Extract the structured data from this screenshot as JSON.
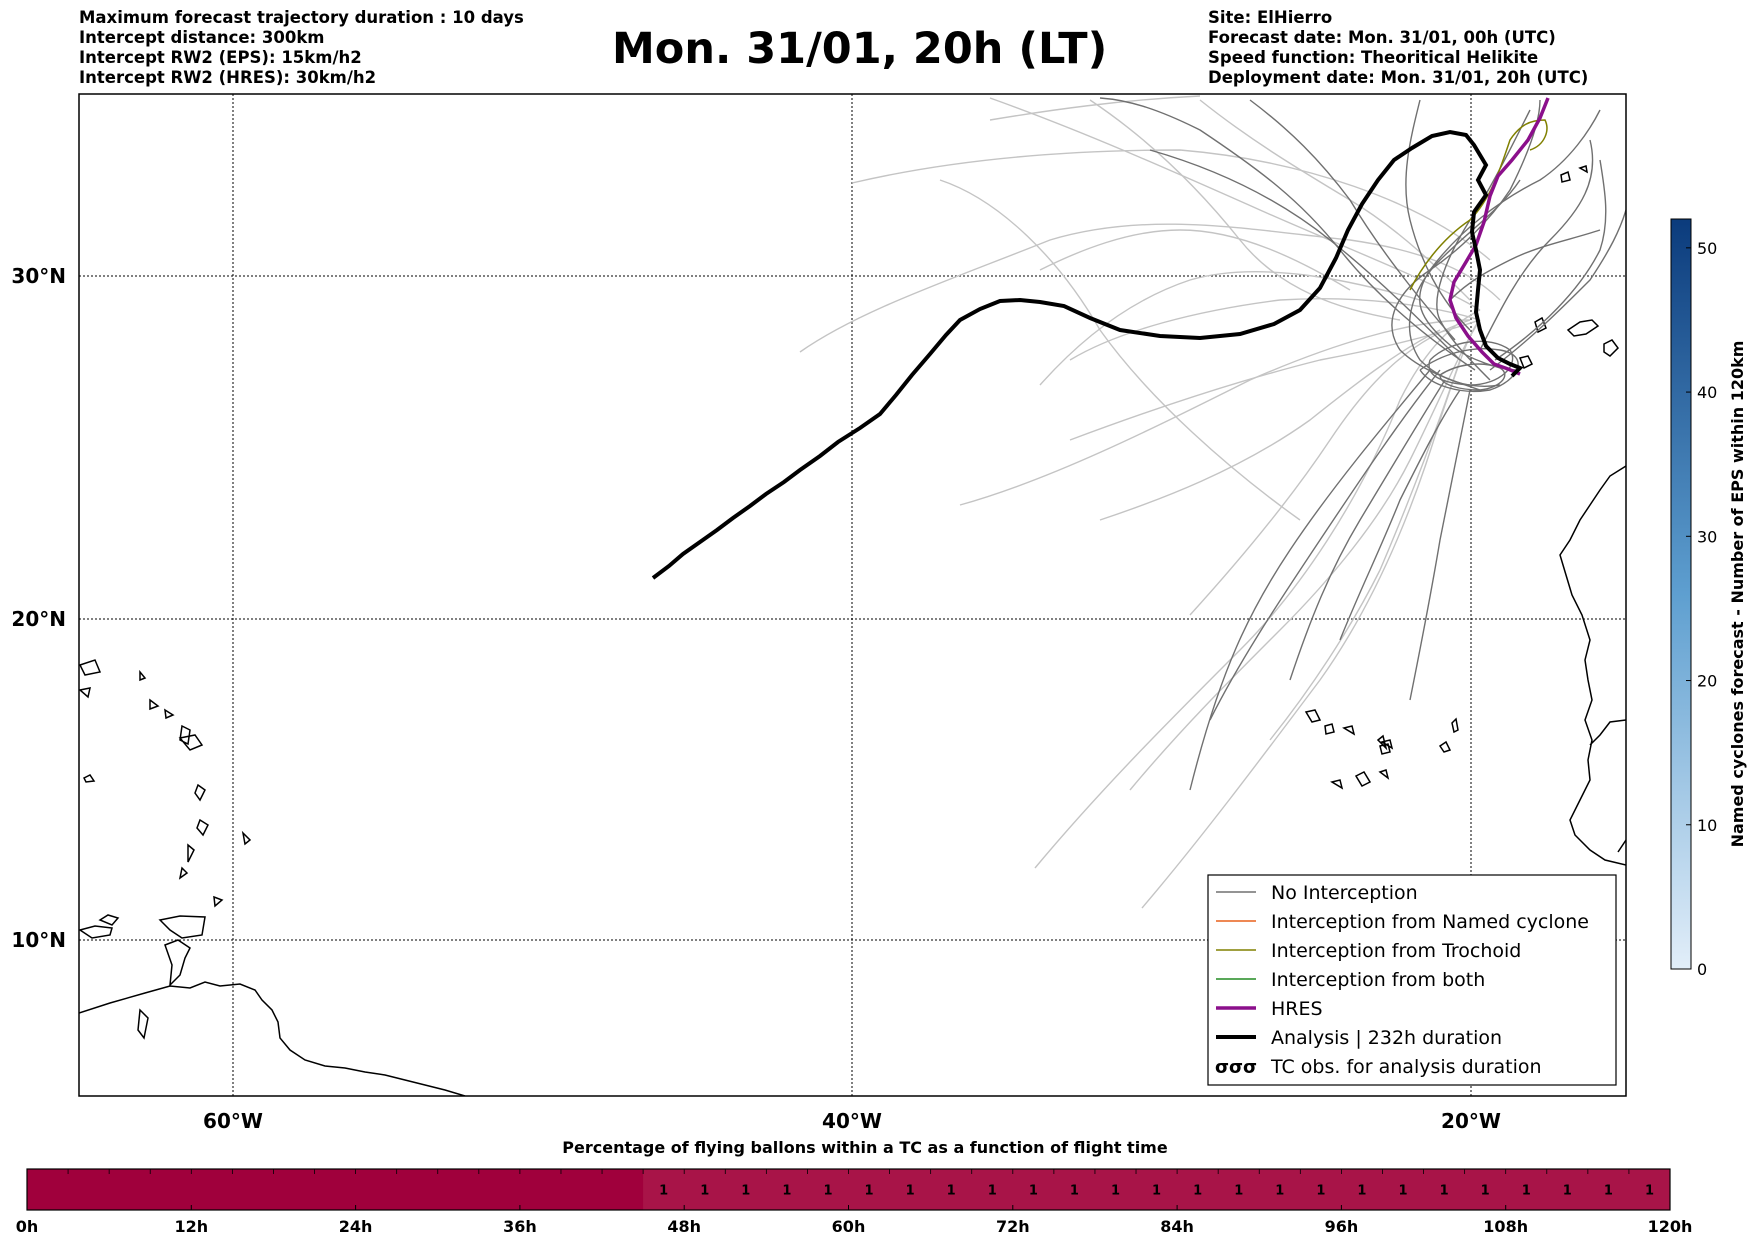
{
  "header": {
    "left_lines": [
      "Maximum forecast trajectory duration : 10 days",
      "Intercept distance: 300km",
      "Intercept RW2 (EPS):  15km/h2",
      "Intercept RW2 (HRES): 30km/h2"
    ],
    "title": "Mon. 31/01, 20h (LT)",
    "right_lines": [
      "Site: ElHierro",
      "Forecast date: Mon. 31/01, 00h (UTC)",
      "Speed function: Theoritical Helikite",
      "Deployment date: Mon. 31/01, 20h (UTC)"
    ]
  },
  "map": {
    "lat_labels": [
      "30°N",
      "20°N",
      "10°N"
    ],
    "lon_labels": [
      "60°W",
      "40°W",
      "20°W"
    ],
    "colors": {
      "no_interception": "#707070",
      "ensemble_light": "#c4c4c4",
      "named_cyclone": "#e8601c",
      "trochoid": "#808000",
      "both": "#228b22",
      "hres": "#8b0f8b",
      "analysis": "#000000"
    },
    "legend": {
      "items": [
        "No Interception",
        "Interception from Named cyclone",
        "Interception from Trochoid",
        "Interception from both",
        "HRES",
        "Analysis | 232h duration",
        "TC obs. for analysis duration"
      ],
      "tc_symbol": "σσσ"
    }
  },
  "colorbar": {
    "label": "Named cyclones forecast - Number of EPS within 120km",
    "ticks": [
      "0",
      "10",
      "20",
      "30",
      "40",
      "50"
    ],
    "range": [
      0,
      52
    ],
    "color_low": "#e2eef9",
    "color_high": "#0b3b7c"
  },
  "timeline": {
    "title": "Percentage of flying ballons within a TC as a function of flight time",
    "tick_labels": [
      "0h",
      "12h",
      "24h",
      "36h",
      "48h",
      "60h",
      "72h",
      "84h",
      "96h",
      "108h",
      "120h"
    ],
    "cell_values": [
      "1",
      "1",
      "1",
      "1",
      "1",
      "1",
      "1",
      "1",
      "1",
      "1",
      "1",
      "1",
      "1",
      "1",
      "1",
      "1",
      "1",
      "1",
      "1",
      "1",
      "1",
      "1",
      "1",
      "1",
      "1"
    ],
    "color_full": "#a0003c",
    "color_partial": "#a81448"
  }
}
